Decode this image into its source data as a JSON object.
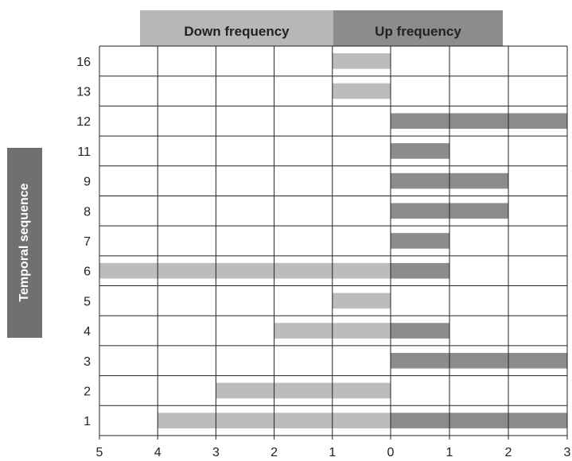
{
  "chart_data": {
    "type": "bar",
    "orientation": "horizontal",
    "layout": "diverging",
    "headers": {
      "down": "Down frequency",
      "up": "Up frequency"
    },
    "ylabel": "Temporal sequence",
    "categories": [
      "16",
      "13",
      "12",
      "11",
      "9",
      "8",
      "7",
      "6",
      "5",
      "4",
      "3",
      "2",
      "1"
    ],
    "series": [
      {
        "name": "Down frequency",
        "color": "#bcbcbc",
        "values": [
          1,
          1,
          0,
          0,
          0,
          0,
          0,
          5,
          1,
          2,
          0,
          3,
          4
        ]
      },
      {
        "name": "Up frequency",
        "color": "#8c8c8c",
        "values": [
          0,
          0,
          3,
          1,
          2,
          2,
          1,
          1,
          0,
          1,
          3,
          0,
          3
        ]
      }
    ],
    "xaxis": {
      "down_range": [
        5,
        0
      ],
      "up_range": [
        0,
        3
      ],
      "tick_labels": [
        "5",
        "4",
        "3",
        "2",
        "1",
        "0",
        "1",
        "2",
        "3"
      ]
    },
    "colors": {
      "down_bar": "#bcbcbc",
      "up_bar": "#8c8c8c",
      "down_header": "#b7b7b7",
      "up_header": "#8c8c8c",
      "ylabel_box": "#707070",
      "grid": "#222222"
    },
    "grid": true
  }
}
